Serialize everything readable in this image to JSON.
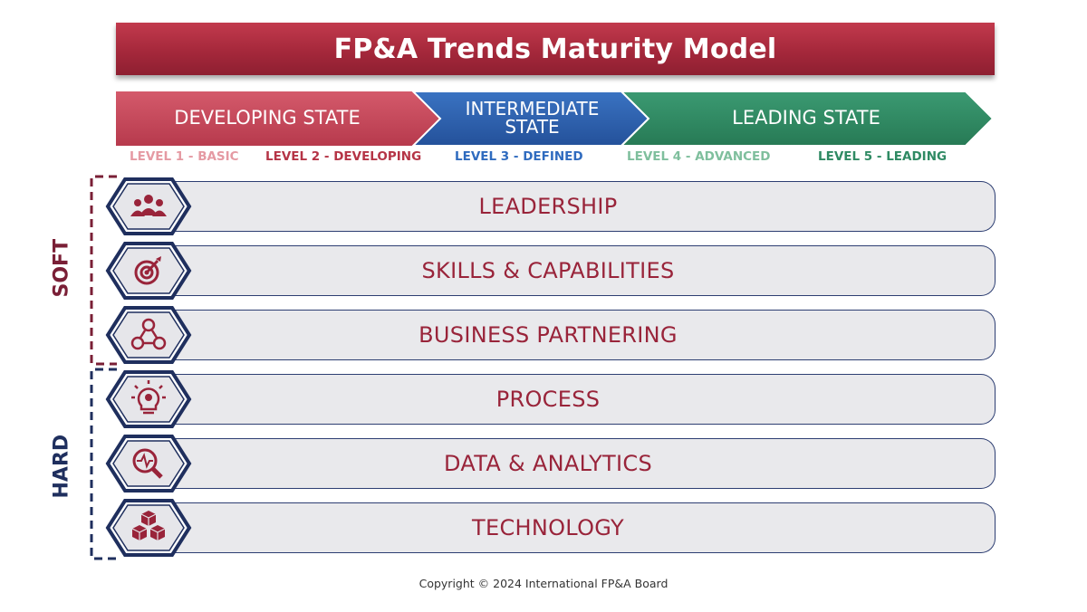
{
  "title": "FP&A Trends Maturity Model",
  "states": [
    {
      "label": "DEVELOPING STATE",
      "color": "#c9485b"
    },
    {
      "label": "INTERMEDIATE STATE",
      "line1": "INTERMEDIATE",
      "line2": "STATE",
      "color": "#2b5fae"
    },
    {
      "label": "LEADING STATE",
      "color": "#2f8a63"
    }
  ],
  "levels": [
    {
      "label": "LEVEL 1 - BASIC",
      "color": "#e59aa3"
    },
    {
      "label": "LEVEL 2 - DEVELOPING",
      "color": "#b53446"
    },
    {
      "label": "LEVEL 3 - DEFINED",
      "color": "#2f6bbf"
    },
    {
      "label": "LEVEL 4 - ADVANCED",
      "color": "#7fbf9d"
    },
    {
      "label": "LEVEL 5 - LEADING",
      "color": "#2f8a63"
    }
  ],
  "groups": {
    "soft": {
      "label": "SOFT",
      "color": "#7a1f36"
    },
    "hard": {
      "label": "HARD",
      "color": "#1f2f5e"
    }
  },
  "dimensions": [
    {
      "label": "LEADERSHIP",
      "icon": "team-icon"
    },
    {
      "label": "SKILLS & CAPABILITIES",
      "icon": "target-icon"
    },
    {
      "label": "BUSINESS PARTNERING",
      "icon": "network-icon"
    },
    {
      "label": "PROCESS",
      "icon": "lightbulb-gear-icon"
    },
    {
      "label": "DATA & ANALYTICS",
      "icon": "magnifier-pulse-icon"
    },
    {
      "label": "TECHNOLOGY",
      "icon": "cubes-icon"
    }
  ],
  "copyright": "Copyright © 2024 International FP&A Board"
}
